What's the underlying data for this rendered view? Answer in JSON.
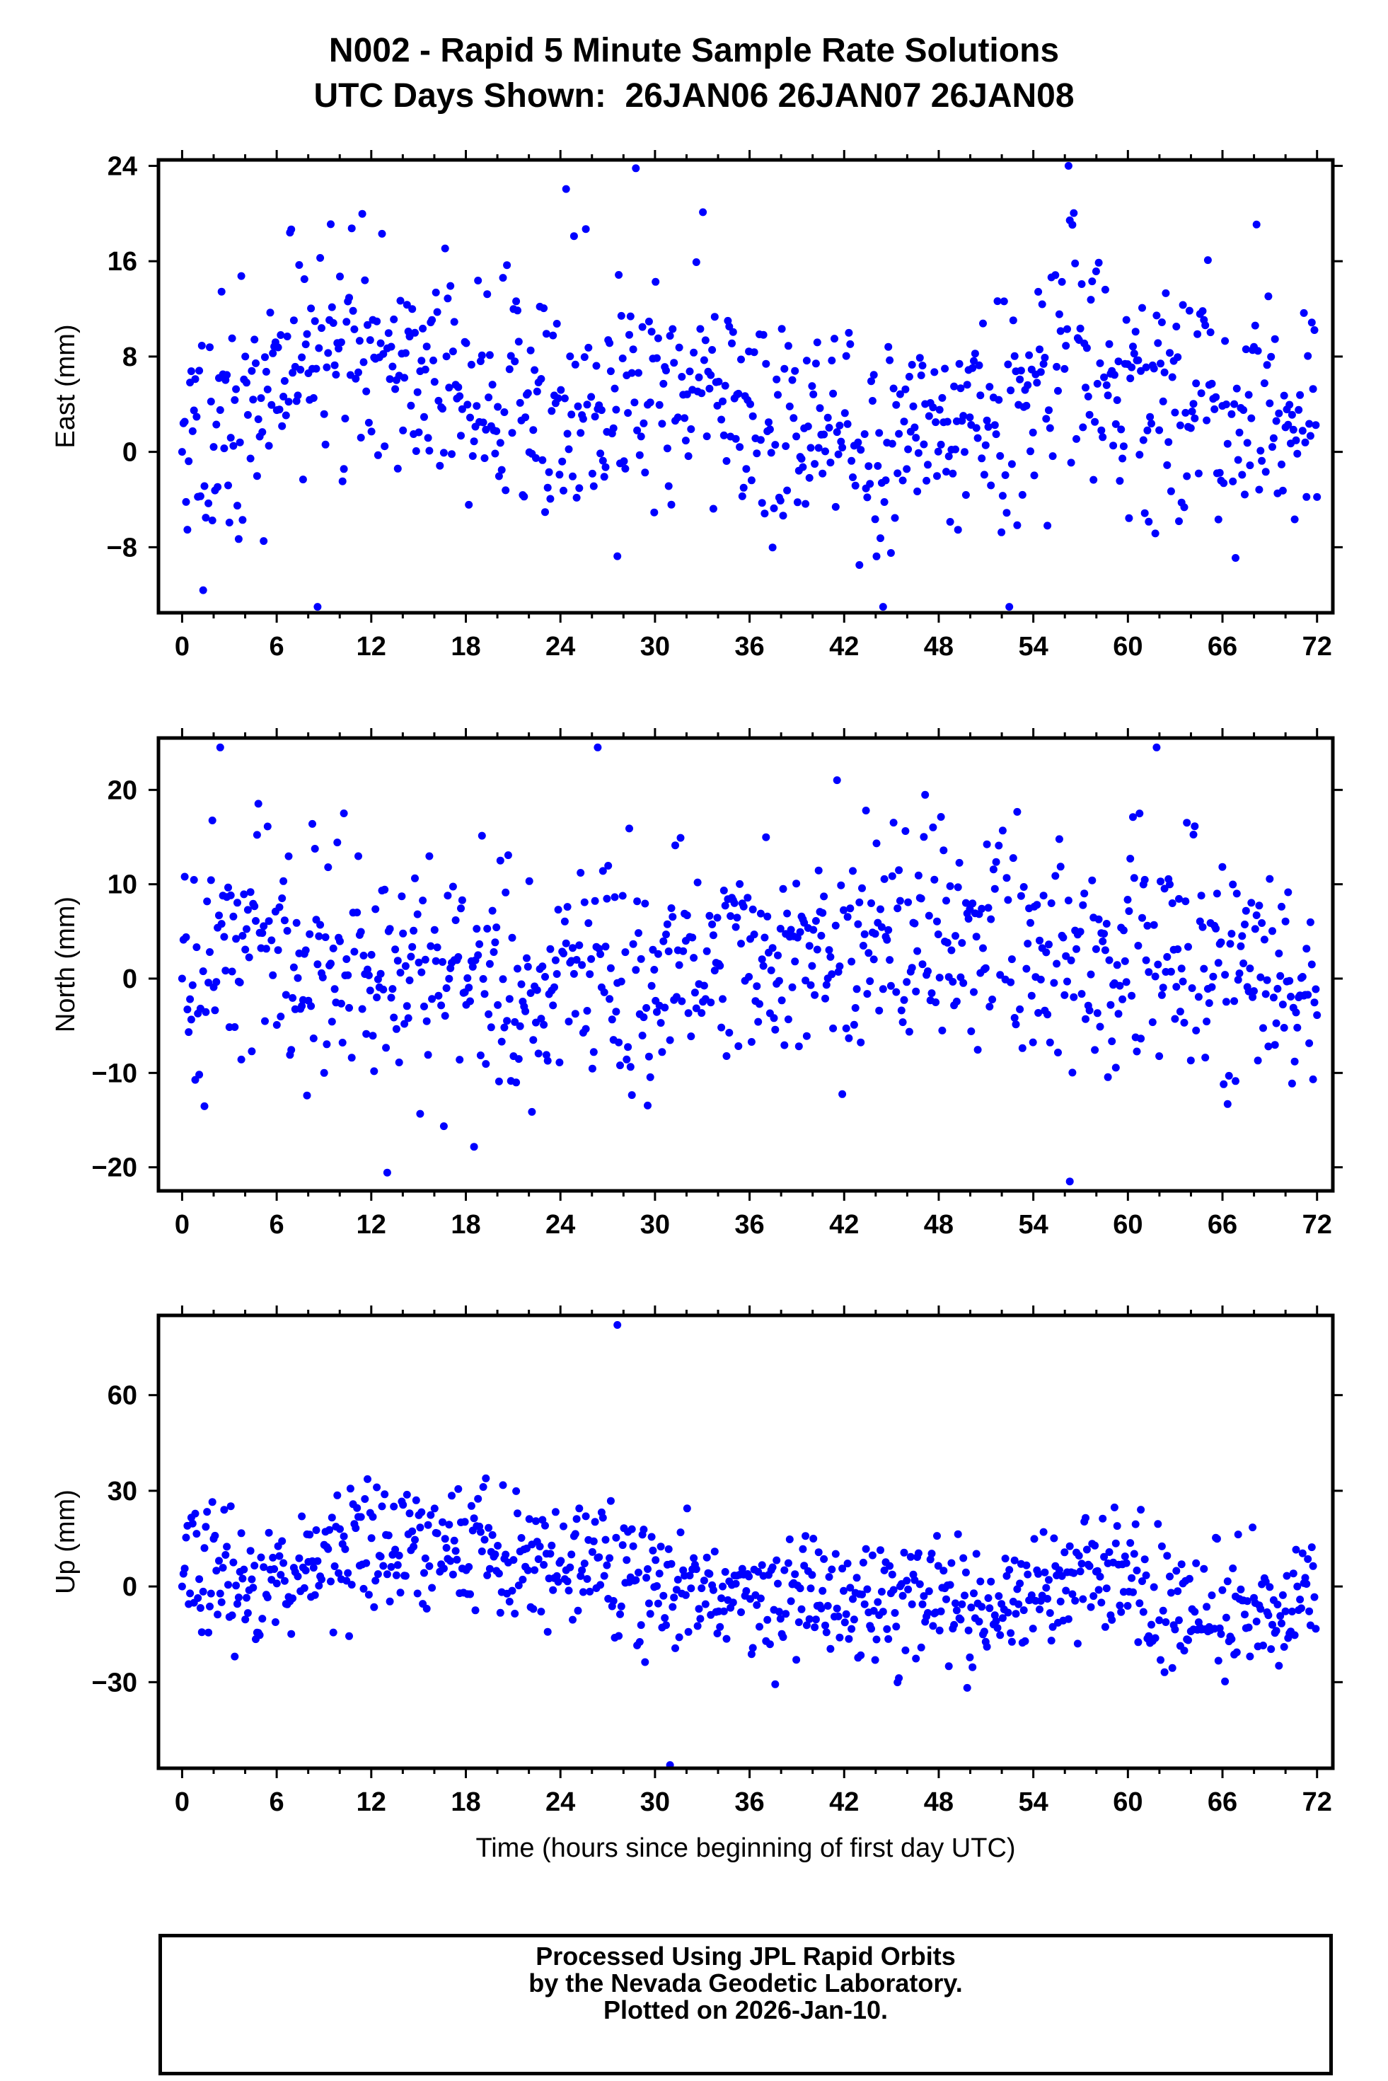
{
  "title": {
    "line1": "N002 - Rapid 5 Minute Sample Rate Solutions",
    "line2": "UTC Days Shown:  26JAN06 26JAN07 26JAN08"
  },
  "footer": {
    "line1": "Processed Using JPL Rapid Orbits",
    "line2": "by the Nevada Geodetic Laboratory.",
    "line3": "Plotted on 2026-Jan-10."
  },
  "chart_data": [
    {
      "type": "scatter",
      "ylabel": "East (mm)",
      "xlabel": "",
      "xlim": [
        -1.5,
        73
      ],
      "ylim": [
        -13.5,
        24.5
      ],
      "xticks": [
        0,
        6,
        12,
        18,
        24,
        30,
        36,
        42,
        48,
        54,
        60,
        66,
        72
      ],
      "yticks": [
        -8,
        0,
        8,
        16,
        24
      ],
      "ytick_labels": [
        "−8",
        "0",
        "8",
        "16",
        "24"
      ],
      "point_color": "#0000ff",
      "grid": false,
      "series": [
        {
          "seed": 11,
          "spread": 5.0,
          "outlier_lo": -13.0,
          "outlier_hi": 23.8,
          "trend": [
            [
              0,
              0
            ],
            [
              4,
              3
            ],
            [
              9,
              11
            ],
            [
              13,
              8
            ],
            [
              17,
              6
            ],
            [
              22,
              3
            ],
            [
              28,
              4
            ],
            [
              33,
              7
            ],
            [
              37,
              3
            ],
            [
              42,
              2
            ],
            [
              48,
              1
            ],
            [
              53,
              3
            ],
            [
              57,
              9
            ],
            [
              60,
              4
            ],
            [
              64,
              3
            ],
            [
              68,
              4
            ],
            [
              72,
              3
            ]
          ]
        }
      ]
    },
    {
      "type": "scatter",
      "ylabel": "North (mm)",
      "xlabel": "",
      "xlim": [
        -1.5,
        73
      ],
      "ylim": [
        -22.5,
        25.5
      ],
      "xticks": [
        0,
        6,
        12,
        18,
        24,
        30,
        36,
        42,
        48,
        54,
        60,
        66,
        72
      ],
      "yticks": [
        -20,
        -10,
        0,
        10,
        20
      ],
      "ytick_labels": [
        "−20",
        "−10",
        "0",
        "10",
        "20"
      ],
      "point_color": "#0000ff",
      "grid": false,
      "series": [
        {
          "seed": 23,
          "spread": 6.0,
          "outlier_lo": -21.5,
          "outlier_hi": 24.5,
          "trend": [
            [
              0,
              2
            ],
            [
              4,
              4
            ],
            [
              10,
              2
            ],
            [
              14,
              1
            ],
            [
              19,
              -2
            ],
            [
              24,
              3
            ],
            [
              30,
              -2
            ],
            [
              34,
              4
            ],
            [
              38,
              2
            ],
            [
              44,
              2
            ],
            [
              50,
              5
            ],
            [
              56,
              3
            ],
            [
              62,
              2
            ],
            [
              68,
              0
            ],
            [
              72,
              -2
            ]
          ]
        }
      ]
    },
    {
      "type": "scatter",
      "ylabel": "Up (mm)",
      "xlabel": "Time (hours since beginning of first day UTC)",
      "xlim": [
        -1.5,
        73
      ],
      "ylim": [
        -57,
        85
      ],
      "xticks": [
        0,
        6,
        12,
        18,
        24,
        30,
        36,
        42,
        48,
        54,
        60,
        66,
        72
      ],
      "yticks": [
        -30,
        0,
        30,
        60
      ],
      "ytick_labels": [
        "−30",
        "0",
        "30",
        "60"
      ],
      "point_color": "#0000ff",
      "grid": false,
      "series": [
        {
          "seed": 37,
          "spread": 10.0,
          "outlier_lo": -56.0,
          "outlier_hi": 82.0,
          "trend": [
            [
              0,
              10
            ],
            [
              4,
              0
            ],
            [
              12,
              10
            ],
            [
              18,
              12
            ],
            [
              24,
              8
            ],
            [
              30,
              2
            ],
            [
              36,
              0
            ],
            [
              42,
              -5
            ],
            [
              48,
              -5
            ],
            [
              52,
              -10
            ],
            [
              57,
              5
            ],
            [
              62,
              -5
            ],
            [
              68,
              -8
            ],
            [
              72,
              -5
            ]
          ]
        }
      ]
    }
  ]
}
